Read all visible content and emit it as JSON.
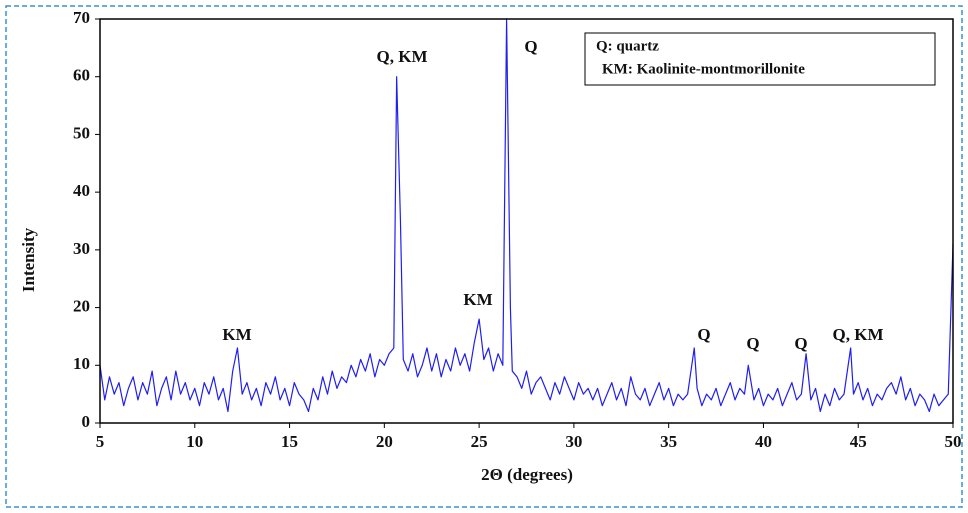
{
  "chart_data": {
    "type": "line",
    "x_label": "2Θ (degrees)",
    "y_label": "Intensity",
    "legend_text": [
      "Q: quartz",
      "KM: Kaolinite-montmorillonite"
    ],
    "annotations": [
      "Q, KM",
      "Q",
      "KM",
      "KM",
      "Q",
      "Q",
      "Q",
      "Q, KM"
    ],
    "xlim": [
      5,
      50
    ],
    "ylim": [
      0,
      70
    ],
    "xticks": [
      5,
      10,
      15,
      20,
      25,
      30,
      35,
      40,
      45,
      50
    ],
    "yticks": [
      0,
      10,
      20,
      30,
      40,
      50,
      60,
      70
    ],
    "x": [
      5,
      5.25,
      5.5,
      5.75,
      6,
      6.25,
      6.5,
      6.75,
      7,
      7.25,
      7.5,
      7.75,
      8,
      8.25,
      8.5,
      8.75,
      9,
      9.25,
      9.5,
      9.75,
      10,
      10.25,
      10.5,
      10.75,
      11,
      11.25,
      11.5,
      11.75,
      12,
      12.25,
      12.5,
      12.75,
      13,
      13.25,
      13.5,
      13.75,
      14,
      14.25,
      14.5,
      14.75,
      15,
      15.25,
      15.5,
      15.75,
      16,
      16.25,
      16.5,
      16.75,
      17,
      17.25,
      17.5,
      17.75,
      18,
      18.25,
      18.5,
      18.75,
      19,
      19.25,
      19.5,
      19.75,
      20,
      20.25,
      20.5,
      20.65,
      20.85,
      21,
      21.25,
      21.5,
      21.75,
      22,
      22.25,
      22.5,
      22.75,
      23,
      23.25,
      23.5,
      23.75,
      24,
      24.25,
      24.5,
      24.75,
      25,
      25.25,
      25.5,
      25.75,
      26,
      26.25,
      26.45,
      26.65,
      26.75,
      27,
      27.25,
      27.5,
      27.75,
      28,
      28.25,
      28.5,
      28.75,
      29,
      29.25,
      29.5,
      29.75,
      30,
      30.25,
      30.5,
      30.75,
      31,
      31.25,
      31.5,
      31.75,
      32,
      32.25,
      32.5,
      32.75,
      33,
      33.25,
      33.5,
      33.75,
      34,
      34.25,
      34.5,
      34.75,
      35,
      35.25,
      35.5,
      35.75,
      36,
      36.35,
      36.5,
      36.75,
      37,
      37.25,
      37.5,
      37.75,
      38,
      38.25,
      38.5,
      38.75,
      39,
      39.2,
      39.5,
      39.75,
      40,
      40.25,
      40.5,
      40.75,
      41,
      41.25,
      41.5,
      41.75,
      42,
      42.25,
      42.5,
      42.75,
      43,
      43.25,
      43.5,
      43.75,
      44,
      44.25,
      44.6,
      44.75,
      45,
      45.25,
      45.5,
      45.75,
      46,
      46.25,
      46.5,
      46.75,
      47,
      47.25,
      47.5,
      47.75,
      48,
      48.25,
      48.5,
      48.75,
      49,
      49.25,
      49.5,
      49.75,
      50
    ],
    "series": [
      {
        "color": "#1f1ff0",
        "values": [
          10,
          4,
          8,
          5,
          7,
          3,
          6,
          8,
          4,
          7,
          5,
          9,
          3,
          6,
          8,
          4,
          9,
          5,
          7,
          4,
          6,
          3,
          7,
          5,
          8,
          4,
          6,
          2,
          9,
          13,
          5,
          7,
          4,
          6,
          3,
          7,
          5,
          8,
          4,
          6,
          3,
          7,
          5,
          4,
          2,
          6,
          4,
          8,
          5,
          9,
          6,
          8,
          7,
          10,
          8,
          11,
          9,
          12,
          8,
          11,
          10,
          12,
          13,
          60,
          35,
          11,
          9,
          12,
          8,
          10,
          13,
          9,
          12,
          8,
          11,
          9,
          13,
          10,
          12,
          9,
          14,
          18,
          11,
          13,
          9,
          12,
          10,
          70,
          20,
          9,
          8,
          6,
          9,
          5,
          7,
          8,
          6,
          4,
          7,
          5,
          8,
          6,
          4,
          7,
          5,
          6,
          4,
          6,
          3,
          5,
          7,
          4,
          6,
          3,
          8,
          5,
          4,
          6,
          3,
          5,
          7,
          4,
          6,
          3,
          5,
          4,
          5,
          13,
          6,
          3,
          5,
          4,
          6,
          3,
          5,
          7,
          4,
          6,
          5,
          10,
          4,
          6,
          3,
          5,
          4,
          6,
          3,
          5,
          7,
          4,
          5,
          12,
          4,
          6,
          2,
          5,
          3,
          6,
          4,
          5,
          13,
          5,
          7,
          4,
          6,
          3,
          5,
          4,
          6,
          7,
          5,
          8,
          4,
          6,
          3,
          5,
          4,
          2,
          5,
          3,
          4,
          5,
          31
        ]
      }
    ]
  }
}
